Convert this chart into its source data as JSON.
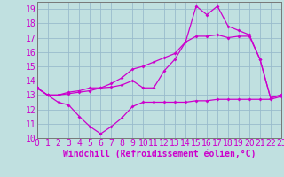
{
  "bg_color": "#c0e0e0",
  "grid_color": "#99bbcc",
  "line_color": "#cc00cc",
  "xlabel": "Windchill (Refroidissement éolien,°C)",
  "xlim": [
    0,
    23
  ],
  "ylim": [
    10,
    19.5
  ],
  "yticks": [
    10,
    11,
    12,
    13,
    14,
    15,
    16,
    17,
    18,
    19
  ],
  "xticks": [
    0,
    1,
    2,
    3,
    4,
    5,
    6,
    7,
    8,
    9,
    10,
    11,
    12,
    13,
    14,
    15,
    16,
    17,
    18,
    19,
    20,
    21,
    22,
    23
  ],
  "line1_x": [
    0,
    1,
    2,
    3,
    4,
    5,
    6,
    7,
    8,
    9,
    10,
    11,
    12,
    13,
    14,
    15,
    16,
    17,
    18,
    19,
    20,
    21,
    22,
    23
  ],
  "line1_y": [
    13.5,
    13.0,
    12.5,
    12.3,
    11.5,
    10.8,
    10.3,
    10.8,
    11.4,
    12.2,
    12.5,
    12.5,
    12.5,
    12.5,
    12.5,
    12.6,
    12.6,
    12.7,
    12.7,
    12.7,
    12.7,
    12.7,
    12.7,
    12.9
  ],
  "line2_x": [
    0,
    1,
    2,
    3,
    4,
    5,
    6,
    7,
    8,
    9,
    10,
    11,
    12,
    13,
    14,
    15,
    16,
    17,
    18,
    19,
    20,
    21,
    22,
    23
  ],
  "line2_y": [
    13.5,
    13.0,
    13.0,
    13.1,
    13.2,
    13.3,
    13.5,
    13.55,
    13.7,
    14.0,
    13.5,
    13.5,
    14.7,
    15.5,
    16.7,
    17.1,
    17.1,
    17.2,
    17.0,
    17.1,
    17.1,
    15.5,
    12.8,
    13.0
  ],
  "line3_x": [
    0,
    1,
    2,
    3,
    4,
    5,
    6,
    7,
    8,
    9,
    10,
    11,
    12,
    13,
    14,
    15,
    16,
    17,
    18,
    19,
    20,
    21,
    22,
    23
  ],
  "line3_y": [
    13.5,
    13.0,
    13.0,
    13.2,
    13.3,
    13.5,
    13.5,
    13.8,
    14.2,
    14.8,
    15.0,
    15.3,
    15.6,
    15.9,
    16.7,
    19.2,
    18.6,
    19.2,
    17.8,
    17.5,
    17.2,
    15.5,
    12.8,
    13.0
  ],
  "tick_fontsize": 7,
  "xlabel_fontsize": 7,
  "marker_size": 2.0,
  "line_width": 0.9
}
